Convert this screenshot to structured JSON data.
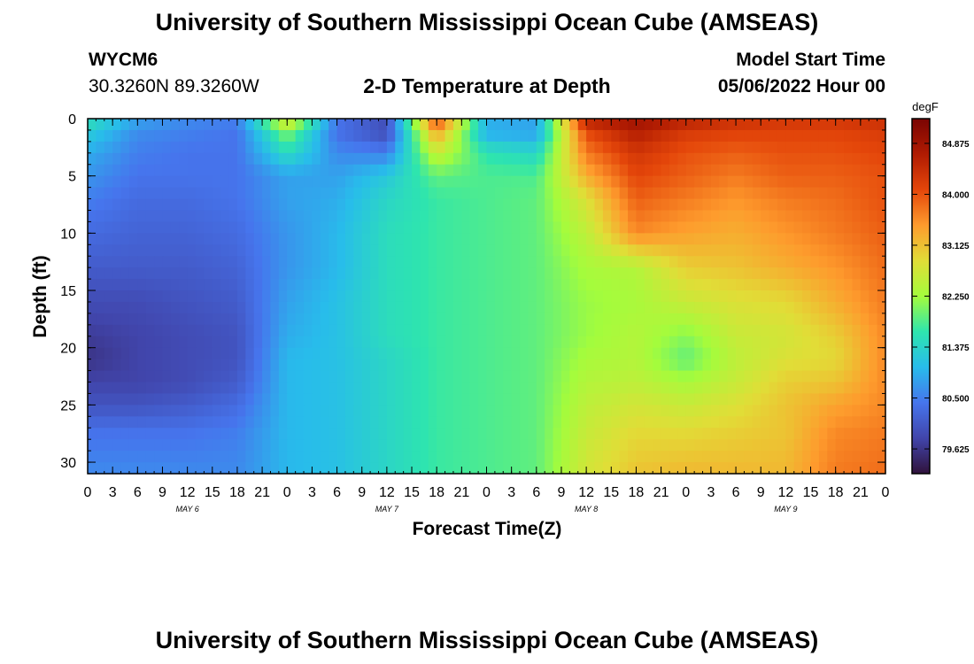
{
  "header": {
    "title": "University of Southern Mississippi Ocean Cube (AMSEAS)",
    "station": "WYCM6",
    "coords": "30.3260N  89.3260W",
    "subtitle": "2-D Temperature at Depth",
    "model_start_label": "Model Start Time",
    "model_start_value": "05/06/2022 Hour 00"
  },
  "footer": {
    "title": "University of Southern Mississippi Ocean Cube (AMSEAS)"
  },
  "colorbar": {
    "unit": "degF",
    "min": 79.2,
    "max": 85.3,
    "ticks": [
      {
        "label": "84.875",
        "value": 84.875
      },
      {
        "label": "84.000",
        "value": 84.0
      },
      {
        "label": "83.125",
        "value": 83.125
      },
      {
        "label": "82.250",
        "value": 82.25
      },
      {
        "label": "81.375",
        "value": 81.375
      },
      {
        "label": "80.500",
        "value": 80.5
      },
      {
        "label": "79.625",
        "value": 79.625
      }
    ]
  },
  "chart_data": {
    "type": "heatmap",
    "title": "2-D Temperature at Depth",
    "xlabel": "Forecast Time(Z)",
    "ylabel": "Depth (ft)",
    "units": "degF",
    "xlim": [
      0,
      96
    ],
    "ylim": [
      0,
      31
    ],
    "x_ticks": [
      {
        "hour": 0,
        "label": "0"
      },
      {
        "hour": 3,
        "label": "3"
      },
      {
        "hour": 6,
        "label": "6"
      },
      {
        "hour": 9,
        "label": "9"
      },
      {
        "hour": 12,
        "label": "12"
      },
      {
        "hour": 15,
        "label": "15"
      },
      {
        "hour": 18,
        "label": "18"
      },
      {
        "hour": 21,
        "label": "21"
      },
      {
        "hour": 24,
        "label": "0"
      },
      {
        "hour": 27,
        "label": "3"
      },
      {
        "hour": 30,
        "label": "6"
      },
      {
        "hour": 33,
        "label": "9"
      },
      {
        "hour": 36,
        "label": "12"
      },
      {
        "hour": 39,
        "label": "15"
      },
      {
        "hour": 42,
        "label": "18"
      },
      {
        "hour": 45,
        "label": "21"
      },
      {
        "hour": 48,
        "label": "0"
      },
      {
        "hour": 51,
        "label": "3"
      },
      {
        "hour": 54,
        "label": "6"
      },
      {
        "hour": 57,
        "label": "9"
      },
      {
        "hour": 60,
        "label": "12"
      },
      {
        "hour": 63,
        "label": "15"
      },
      {
        "hour": 66,
        "label": "18"
      },
      {
        "hour": 69,
        "label": "21"
      },
      {
        "hour": 72,
        "label": "0"
      },
      {
        "hour": 75,
        "label": "3"
      },
      {
        "hour": 78,
        "label": "6"
      },
      {
        "hour": 81,
        "label": "9"
      },
      {
        "hour": 84,
        "label": "12"
      },
      {
        "hour": 87,
        "label": "15"
      },
      {
        "hour": 90,
        "label": "18"
      },
      {
        "hour": 93,
        "label": "21"
      },
      {
        "hour": 96,
        "label": "0"
      }
    ],
    "day_labels": [
      {
        "hour": 12,
        "label": "MAY 6"
      },
      {
        "hour": 36,
        "label": "MAY 7"
      },
      {
        "hour": 60,
        "label": "MAY 8"
      },
      {
        "hour": 84,
        "label": "MAY 9"
      }
    ],
    "y_ticks": [
      0,
      5,
      10,
      15,
      20,
      25,
      30
    ],
    "grid_hours": [
      0,
      6,
      12,
      18,
      24,
      30,
      36,
      42,
      48,
      54,
      60,
      66,
      72,
      78,
      84,
      90,
      96
    ],
    "grid_depths": [
      0,
      1.5,
      3,
      5,
      7,
      10,
      13,
      16,
      19,
      21,
      23,
      25,
      27.5,
      31
    ],
    "values": [
      [
        81.6,
        80.8,
        80.6,
        80.5,
        82.9,
        80.4,
        79.9,
        84.2,
        80.9,
        80.8,
        84.6,
        84.9,
        84.6,
        84.4,
        84.3,
        84.3,
        84.4
      ],
      [
        81.2,
        80.6,
        80.5,
        80.4,
        82.0,
        80.4,
        80.0,
        83.3,
        81.0,
        80.9,
        84.0,
        84.6,
        84.2,
        84.1,
        84.1,
        84.1,
        84.2
      ],
      [
        80.9,
        80.5,
        80.4,
        80.4,
        81.5,
        80.6,
        80.5,
        82.6,
        81.6,
        81.4,
        83.7,
        84.3,
        84.0,
        83.9,
        84.0,
        84.0,
        84.1
      ],
      [
        80.7,
        80.4,
        80.4,
        80.4,
        80.8,
        80.8,
        81.2,
        81.9,
        81.8,
        81.8,
        83.3,
        84.1,
        83.9,
        83.7,
        83.9,
        83.9,
        84.0
      ],
      [
        80.5,
        80.3,
        80.3,
        80.4,
        80.8,
        80.9,
        81.4,
        81.7,
        81.8,
        81.9,
        82.8,
        83.9,
        83.7,
        83.5,
        83.7,
        83.8,
        84.0
      ],
      [
        80.3,
        80.2,
        80.2,
        80.3,
        80.7,
        81.0,
        81.5,
        81.7,
        81.8,
        81.9,
        82.5,
        83.6,
        83.4,
        83.3,
        83.5,
        83.7,
        83.9
      ],
      [
        80.1,
        80.1,
        80.1,
        80.2,
        80.7,
        81.0,
        81.5,
        81.7,
        81.8,
        81.9,
        82.3,
        82.4,
        83.0,
        83.1,
        83.3,
        83.5,
        83.8
      ],
      [
        79.9,
        79.9,
        80.0,
        80.1,
        80.8,
        81.1,
        81.5,
        81.7,
        81.8,
        81.9,
        82.2,
        82.3,
        82.6,
        82.8,
        82.9,
        83.3,
        83.7
      ],
      [
        79.7,
        79.8,
        79.9,
        80.0,
        80.9,
        81.1,
        81.5,
        81.7,
        81.8,
        81.9,
        82.2,
        82.4,
        82.1,
        82.6,
        82.7,
        83.0,
        83.6
      ],
      [
        79.6,
        79.8,
        79.9,
        80.0,
        81.0,
        81.1,
        81.4,
        81.7,
        81.8,
        81.9,
        82.3,
        82.4,
        81.9,
        82.5,
        82.8,
        82.9,
        83.6
      ],
      [
        79.8,
        79.8,
        79.9,
        80.1,
        81.0,
        81.1,
        81.4,
        81.7,
        81.8,
        81.9,
        82.4,
        82.5,
        82.3,
        82.6,
        83.0,
        83.1,
        83.6
      ],
      [
        80.0,
        80.0,
        80.1,
        80.3,
        81.0,
        81.1,
        81.4,
        81.7,
        81.8,
        81.9,
        82.5,
        82.7,
        82.6,
        82.8,
        83.1,
        83.4,
        83.6
      ],
      [
        80.4,
        80.4,
        80.4,
        80.5,
        81.0,
        81.1,
        81.4,
        81.7,
        81.8,
        81.9,
        82.6,
        82.9,
        82.9,
        83.0,
        83.1,
        83.6,
        83.7
      ],
      [
        80.6,
        80.6,
        80.6,
        80.6,
        81.0,
        81.1,
        81.4,
        81.7,
        81.8,
        81.9,
        82.7,
        83.1,
        83.2,
        83.2,
        83.2,
        83.7,
        83.8
      ]
    ]
  }
}
